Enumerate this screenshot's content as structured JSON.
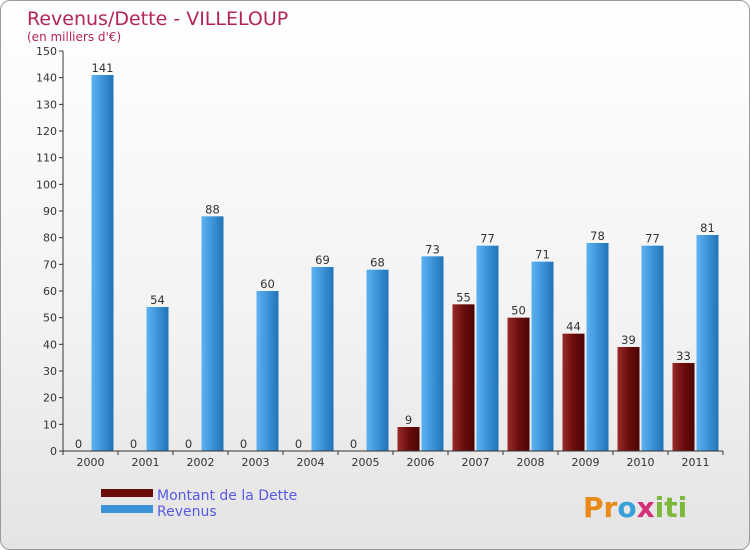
{
  "chart_data": {
    "type": "bar",
    "title": "Revenus/Dette - VILLELOUP",
    "subtitle": "(en milliers d'€)",
    "categories": [
      "2000",
      "2001",
      "2002",
      "2003",
      "2004",
      "2005",
      "2006",
      "2007",
      "2008",
      "2009",
      "2010",
      "2011"
    ],
    "series": [
      {
        "name": "Montant de la Dette",
        "color": "#6b0d0d",
        "values": [
          0,
          0,
          0,
          0,
          0,
          0,
          9,
          55,
          50,
          44,
          39,
          33
        ]
      },
      {
        "name": "Revenus",
        "color": "#3d93d8",
        "values": [
          141,
          54,
          88,
          60,
          69,
          68,
          73,
          77,
          71,
          78,
          77,
          81
        ]
      }
    ],
    "ylim": [
      0,
      150
    ],
    "ytick_step": 10,
    "grid": false,
    "legend": "bottom-left"
  },
  "brand": {
    "letters": [
      "P",
      "r",
      "o",
      "x",
      "i",
      "t",
      "i"
    ],
    "colors": [
      "#e8891a",
      "#e8891a",
      "#3aa0d8",
      "#d62f7a",
      "#7cb83a",
      "#7cb83a",
      "#7cb83a"
    ]
  }
}
